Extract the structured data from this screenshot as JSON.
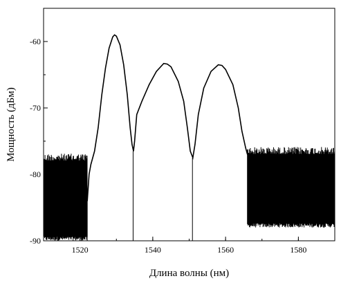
{
  "chart_data": {
    "type": "line",
    "title": "",
    "xlabel": "Длина волны (нм)",
    "ylabel": "Мощность (дБм)",
    "xlim": [
      1510,
      1590
    ],
    "ylim": [
      -90,
      -55
    ],
    "xticks": [
      1520,
      1540,
      1560,
      1580
    ],
    "yticks": [
      -60,
      -70,
      -80,
      -90
    ],
    "grid": false,
    "legend": "none",
    "series": [
      {
        "color": "#000000",
        "noise_floor": [
          {
            "x_range": [
              1510,
              1522
            ],
            "upper": -77.5,
            "lower": -90
          },
          {
            "x_range": [
              1566,
              1590
            ],
            "upper": -76.5,
            "lower": -88
          }
        ],
        "points": [
          [
            1522.0,
            -84.0
          ],
          [
            1522.5,
            -80.0
          ],
          [
            1523.0,
            -78.5
          ],
          [
            1524.0,
            -76.5
          ],
          [
            1525.0,
            -73.0
          ],
          [
            1526.0,
            -68.0
          ],
          [
            1527.0,
            -64.0
          ],
          [
            1528.0,
            -61.0
          ],
          [
            1529.0,
            -59.3
          ],
          [
            1529.5,
            -59.0
          ],
          [
            1530.0,
            -59.2
          ],
          [
            1531.0,
            -60.5
          ],
          [
            1532.0,
            -63.5
          ],
          [
            1533.0,
            -68.0
          ],
          [
            1533.8,
            -73.0
          ],
          [
            1534.3,
            -75.5
          ],
          [
            1534.7,
            -76.5
          ],
          [
            1535.0,
            -75.0
          ],
          [
            1535.6,
            -71.0
          ],
          [
            1537.0,
            -69.0
          ],
          [
            1539.0,
            -66.5
          ],
          [
            1541.0,
            -64.5
          ],
          [
            1543.0,
            -63.3
          ],
          [
            1544.0,
            -63.4
          ],
          [
            1545.0,
            -63.8
          ],
          [
            1547.0,
            -66.0
          ],
          [
            1548.5,
            -69.0
          ],
          [
            1549.5,
            -73.0
          ],
          [
            1550.3,
            -76.5
          ],
          [
            1551.0,
            -77.5
          ],
          [
            1551.6,
            -75.5
          ],
          [
            1552.5,
            -71.0
          ],
          [
            1554.0,
            -67.0
          ],
          [
            1556.0,
            -64.5
          ],
          [
            1558.0,
            -63.5
          ],
          [
            1559.0,
            -63.6
          ],
          [
            1560.0,
            -64.2
          ],
          [
            1562.0,
            -66.5
          ],
          [
            1563.5,
            -70.0
          ],
          [
            1564.5,
            -73.5
          ],
          [
            1565.5,
            -76.0
          ],
          [
            1566.0,
            -77.0
          ]
        ]
      }
    ]
  }
}
